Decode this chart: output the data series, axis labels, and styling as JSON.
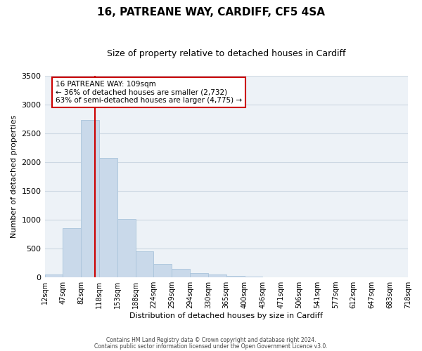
{
  "title": "16, PATREANE WAY, CARDIFF, CF5 4SA",
  "subtitle": "Size of property relative to detached houses in Cardiff",
  "bar_values": [
    55,
    850,
    2730,
    2070,
    1010,
    455,
    230,
    150,
    75,
    55,
    30,
    15,
    5,
    5,
    0,
    0,
    0,
    0,
    0,
    0
  ],
  "bar_color": "#c9d9ea",
  "bar_edge_color": "#aac4db",
  "bin_labels": [
    "12sqm",
    "47sqm",
    "82sqm",
    "118sqm",
    "153sqm",
    "188sqm",
    "224sqm",
    "259sqm",
    "294sqm",
    "330sqm",
    "365sqm",
    "400sqm",
    "436sqm",
    "471sqm",
    "506sqm",
    "541sqm",
    "577sqm",
    "612sqm",
    "647sqm",
    "683sqm",
    "718sqm"
  ],
  "xlabel": "Distribution of detached houses by size in Cardiff",
  "ylabel": "Number of detached properties",
  "ylim": [
    0,
    3500
  ],
  "yticks": [
    0,
    500,
    1000,
    1500,
    2000,
    2500,
    3000,
    3500
  ],
  "vline_color": "#cc0000",
  "annotation_title": "16 PATREANE WAY: 109sqm",
  "annotation_line1": "← 36% of detached houses are smaller (2,732)",
  "annotation_line2": "63% of semi-detached houses are larger (4,775) →",
  "annotation_box_color": "#ffffff",
  "annotation_box_edge_color": "#cc0000",
  "footer1": "Contains HM Land Registry data © Crown copyright and database right 2024.",
  "footer2": "Contains public sector information licensed under the Open Government Licence v3.0.",
  "bg_color": "#edf2f7",
  "grid_color": "#cdd8e3",
  "title_fontsize": 11,
  "subtitle_fontsize": 9,
  "ylabel_fontsize": 8,
  "xlabel_fontsize": 8,
  "tick_fontsize": 7,
  "annotation_fontsize": 7.5,
  "footer_fontsize": 5.5
}
